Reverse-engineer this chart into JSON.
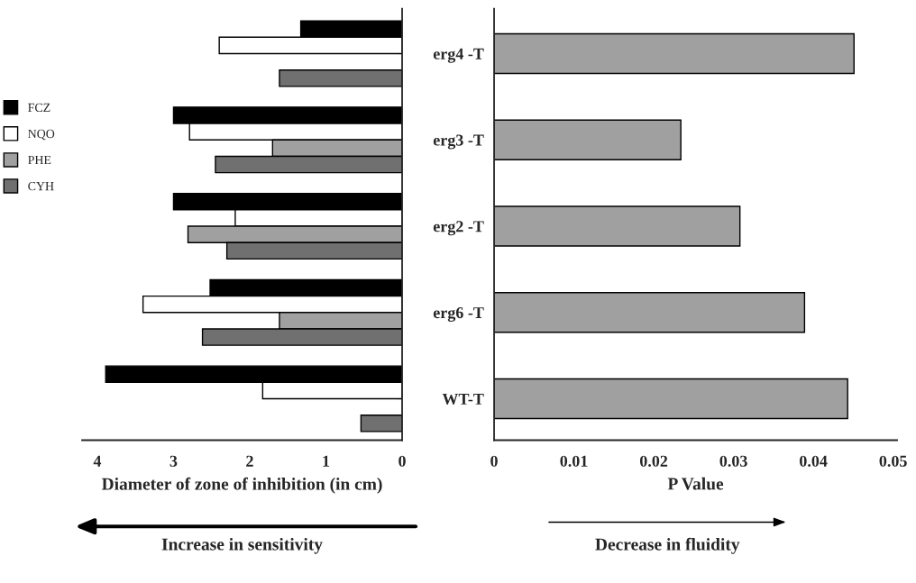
{
  "chart_data": [
    {
      "type": "bar",
      "orientation": "horizontal",
      "categories": [
        null,
        null,
        null,
        null,
        null
      ],
      "series": [
        {
          "name": "FCZ",
          "color": "#000000",
          "values": [
            1.33,
            3.0,
            3.0,
            2.52,
            3.89
          ]
        },
        {
          "name": "NQO",
          "color": "#ffffff",
          "values": [
            2.4,
            2.79,
            2.19,
            3.4,
            1.83
          ]
        },
        {
          "name": "PHE",
          "color": "#a0a0a0",
          "values": [
            null,
            1.7,
            2.81,
            1.61,
            null
          ]
        },
        {
          "name": "CYH",
          "color": "#707070",
          "values": [
            1.61,
            2.45,
            2.3,
            2.62,
            0.54
          ]
        }
      ],
      "xlim": [
        4.2,
        0
      ],
      "xticks": [
        4,
        3,
        2,
        1,
        0
      ],
      "xlabel": "Diameter of zone of inhibition (in cm)",
      "annotations": [
        "Increase in sensitivity"
      ],
      "legend": "left",
      "tick_labels": "x"
    },
    {
      "type": "bar",
      "orientation": "horizontal",
      "categories": [
        "erg4 -T",
        "erg3 -T",
        "erg2 -T",
        "erg6 -T",
        "WT-T"
      ],
      "values": [
        0.0451,
        0.0234,
        0.0308,
        0.0389,
        0.0443
      ],
      "color": "#a0a0a0",
      "xlim": [
        0,
        0.0505
      ],
      "xticks": [
        0,
        0.01,
        0.02,
        0.03,
        0.04,
        0.05
      ],
      "xlabel": "P Value",
      "annotations": [
        "Decrease in fluidity"
      ]
    }
  ]
}
